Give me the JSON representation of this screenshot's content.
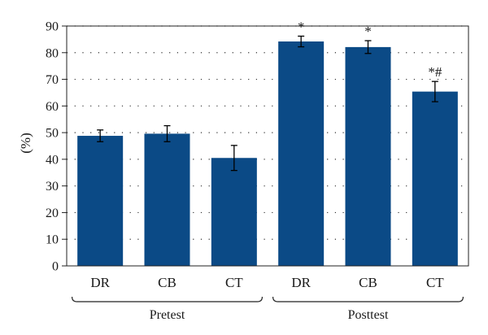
{
  "chart_data": {
    "type": "bar",
    "title": "",
    "xlabel": "",
    "ylabel": "(%)",
    "ylim": [
      0,
      90
    ],
    "yticks": [
      0,
      10,
      20,
      30,
      40,
      50,
      60,
      70,
      80,
      90
    ],
    "grid": "dotted horizontal",
    "bar_color": "#0b4a86",
    "categories": [
      "DR",
      "CB",
      "CT",
      "DR",
      "CB",
      "CT"
    ],
    "values": [
      48.8,
      49.6,
      40.5,
      84.2,
      82.1,
      65.4
    ],
    "errors": [
      2.2,
      3.0,
      4.7,
      2.0,
      2.4,
      3.8
    ],
    "annotations": [
      "",
      "",
      "",
      "*",
      "*",
      "*#"
    ],
    "groups": [
      {
        "label": "Pretest",
        "members": [
          0,
          1,
          2
        ]
      },
      {
        "label": "Posttest",
        "members": [
          3,
          4,
          5
        ]
      }
    ]
  }
}
